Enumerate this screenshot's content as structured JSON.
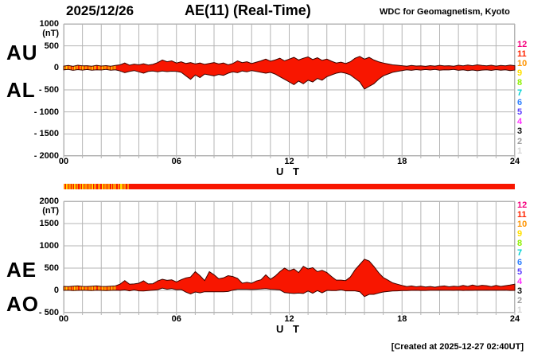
{
  "header": {
    "date": "2025/12/26",
    "title": "AE(11) (Real-Time)",
    "source": "WDC for Geomagnetism, Kyoto"
  },
  "footer": {
    "created": "[Created at 2025-12-27 02:40UT]"
  },
  "side_labels": {
    "top": [
      "AU",
      "AL"
    ],
    "bottom": [
      "AE",
      "AO"
    ]
  },
  "time_axis": {
    "label": "U T",
    "ticks": [
      "00",
      "06",
      "12",
      "18",
      "24"
    ],
    "tick_hours": [
      0,
      6,
      12,
      18,
      24
    ],
    "hours_total": 24
  },
  "station_scale": {
    "labels": [
      "12",
      "11",
      "10",
      "9",
      "8",
      "7",
      "6",
      "5",
      "4",
      "3",
      "2",
      "1"
    ],
    "colors": [
      "#f5007d",
      "#ff2400",
      "#ff9400",
      "#ffe000",
      "#8ef000",
      "#00d0d0",
      "#2f80ff",
      "#5a3cff",
      "#ff30ff",
      "#141414",
      "#9c9c9c",
      "#d4d4d4"
    ]
  },
  "colors": {
    "band_fill": "#f81600",
    "band_outline": "#3a0400",
    "grid": "#b4b4b4",
    "stripe_orange": "#ff9000",
    "stripe_yellow": "#ffd800"
  },
  "chart_data": {
    "type": "area",
    "x_unit": "UT hours",
    "x_start": 0,
    "x_step": 0.25,
    "x_end": 24,
    "y_unit": "(nT)",
    "panels": [
      {
        "id": "top",
        "ylim": [
          -2000,
          1000
        ],
        "ystep": 500,
        "ytick_labels": [
          "1000",
          "500",
          "0",
          "- 500",
          "- 1000",
          "- 1500",
          "- 2000"
        ],
        "ytick_values": [
          1000,
          500,
          0,
          -500,
          -1000,
          -1500,
          -2000
        ],
        "series": [
          {
            "name": "AU",
            "values": [
              40,
              55,
              35,
              60,
              45,
              50,
              38,
              58,
              42,
              52,
              36,
              55,
              70,
              110,
              60,
              85,
              70,
              95,
              65,
              80,
              120,
              180,
              140,
              160,
              110,
              140,
              100,
              120,
              90,
              110,
              80,
              100,
              120,
              90,
              110,
              70,
              100,
              160,
              120,
              140,
              100,
              130,
              160,
              200,
              150,
              180,
              220,
              160,
              200,
              240,
              180,
              220,
              250,
              190,
              230,
              170,
              200,
              150,
              110,
              130,
              100,
              140,
              220,
              260,
              200,
              240,
              180,
              140,
              110,
              90,
              70,
              60,
              50,
              38,
              55,
              42,
              48,
              35,
              52,
              40,
              58,
              44,
              50,
              36,
              60,
              45,
              65,
              50,
              70,
              55,
              45,
              60,
              40,
              55,
              48,
              62,
              50
            ]
          },
          {
            "name": "AL",
            "values": [
              -45,
              -35,
              -55,
              -40,
              -50,
              -38,
              -52,
              -42,
              -48,
              -36,
              -54,
              -44,
              -70,
              -110,
              -80,
              -60,
              -90,
              -120,
              -80,
              -70,
              -90,
              -70,
              -85,
              -75,
              -80,
              -100,
              -180,
              -260,
              -160,
              -220,
              -140,
              -160,
              -180,
              -150,
              -170,
              -120,
              -90,
              -110,
              -70,
              -90,
              -60,
              -80,
              -100,
              -120,
              -100,
              -140,
              -200,
              -260,
              -320,
              -380,
              -300,
              -360,
              -280,
              -320,
              -240,
              -280,
              -200,
              -160,
              -120,
              -100,
              -120,
              -160,
              -240,
              -320,
              -480,
              -420,
              -360,
              -260,
              -180,
              -140,
              -100,
              -80,
              -60,
              -45,
              -55,
              -40,
              -50,
              -38,
              -48,
              -36,
              -52,
              -42,
              -46,
              -35,
              -55,
              -45,
              -60,
              -48,
              -65,
              -50,
              -45,
              -58,
              -40,
              -52,
              -44,
              -60,
              -50
            ]
          }
        ]
      },
      {
        "id": "bottom",
        "ylim": [
          -500,
          2000
        ],
        "ystep": 500,
        "ytick_labels": [
          "2000",
          "1500",
          "1000",
          "500",
          "0",
          "- 500"
        ],
        "ytick_values": [
          2000,
          1500,
          1000,
          500,
          0,
          -500
        ],
        "series": [
          {
            "name": "AE",
            "values": [
              90,
              85,
              95,
              100,
              90,
              88,
              92,
              100,
              90,
              88,
              95,
              100,
              140,
              220,
              140,
              145,
              160,
              215,
              145,
              150,
              210,
              250,
              225,
              235,
              190,
              240,
              280,
              300,
              420,
              330,
              220,
              420,
              350,
              260,
              280,
              330,
              310,
              270,
              160,
              180,
              160,
              210,
              240,
              350,
              250,
              320,
              420,
              500,
              440,
              480,
              400,
              540,
              480,
              510,
              420,
              450,
              400,
              310,
              230,
              230,
              220,
              300,
              460,
              580,
              700,
              660,
              540,
              400,
              290,
              230,
              170,
              140,
              110,
              85,
              100,
              80,
              95,
              75,
              88,
              72,
              90,
              100,
              80,
              95,
              85,
              110,
              90,
              120,
              95,
              115,
              105,
              85,
              110,
              90,
              105,
              120,
              140
            ]
          },
          {
            "name": "AO",
            "values": [
              0,
              5,
              -5,
              0,
              5,
              0,
              -5,
              5,
              0,
              -5,
              0,
              5,
              0,
              10,
              -10,
              10,
              -10,
              -15,
              -5,
              5,
              15,
              50,
              25,
              40,
              15,
              20,
              -40,
              -80,
              -35,
              -55,
              -30,
              -30,
              -30,
              -30,
              -30,
              -25,
              5,
              25,
              25,
              25,
              20,
              25,
              30,
              40,
              25,
              20,
              10,
              -50,
              -60,
              -70,
              -60,
              -70,
              -15,
              -65,
              -5,
              -55,
              0,
              -5,
              -5,
              15,
              -10,
              -10,
              -10,
              -30,
              -140,
              -90,
              -90,
              -60,
              -35,
              -25,
              -15,
              -10,
              -5,
              -4,
              0,
              1,
              -1,
              -2,
              2,
              2,
              3,
              1,
              2,
              0,
              3,
              -2,
              2,
              0,
              3,
              1,
              3,
              2,
              5,
              1,
              3,
              -1,
              0
            ]
          }
        ]
      }
    ],
    "station_bar": {
      "base_color": "#f81600",
      "band_stripe_end": 2.85,
      "stripes": [
        {
          "s": 0.0,
          "e": 0.1,
          "c": "#ff9000"
        },
        {
          "s": 0.12,
          "e": 0.2,
          "c": "#ffd800"
        },
        {
          "s": 0.26,
          "e": 0.38,
          "c": "#ff9000"
        },
        {
          "s": 0.44,
          "e": 0.52,
          "c": "#ff9000"
        },
        {
          "s": 0.55,
          "e": 0.62,
          "c": "#ffd800"
        },
        {
          "s": 0.66,
          "e": 0.76,
          "c": "#ff9000"
        },
        {
          "s": 0.84,
          "e": 0.94,
          "c": "#ff9000"
        },
        {
          "s": 0.98,
          "e": 1.06,
          "c": "#ffd800"
        },
        {
          "s": 1.12,
          "e": 1.26,
          "c": "#ff9000"
        },
        {
          "s": 1.32,
          "e": 1.44,
          "c": "#ff9000"
        },
        {
          "s": 1.48,
          "e": 1.56,
          "c": "#ffd800"
        },
        {
          "s": 1.6,
          "e": 1.74,
          "c": "#ff9000"
        },
        {
          "s": 1.82,
          "e": 1.96,
          "c": "#ff9000"
        },
        {
          "s": 2.02,
          "e": 2.1,
          "c": "#ffd800"
        },
        {
          "s": 2.14,
          "e": 2.28,
          "c": "#ff9000"
        },
        {
          "s": 2.34,
          "e": 2.46,
          "c": "#ff9000"
        },
        {
          "s": 2.52,
          "e": 2.6,
          "c": "#ffd800"
        },
        {
          "s": 2.64,
          "e": 2.78,
          "c": "#ff9000"
        },
        {
          "s": 2.86,
          "e": 2.96,
          "c": "#ff9000"
        },
        {
          "s": 3.02,
          "e": 3.12,
          "c": "#ffd800"
        },
        {
          "s": 3.18,
          "e": 3.32,
          "c": "#ff9000"
        },
        {
          "s": 3.38,
          "e": 3.48,
          "c": "#ff9000"
        }
      ]
    }
  }
}
